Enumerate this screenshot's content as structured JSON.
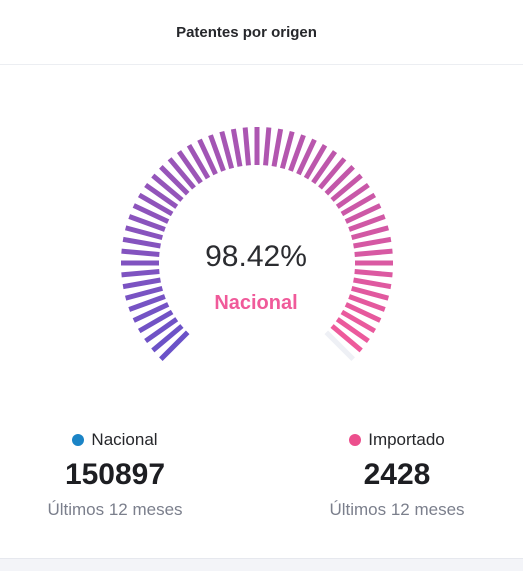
{
  "header": {
    "title": "Patentes por origen"
  },
  "gauge": {
    "value_text": "98.42%",
    "fraction": 0.9842,
    "label": "Nacional",
    "label_color": "#f05a9a",
    "gradient_start": "#6a52c8",
    "gradient_end": "#f05a9a",
    "track_color": "#eef0f5"
  },
  "legend": [
    {
      "name": "Nacional",
      "dot_color": "#1b84c6",
      "value": "150897",
      "period": "Últimos 12 meses"
    },
    {
      "name": "Importado",
      "dot_color": "#ec4f8d",
      "value": "2428",
      "period": "Últimos 12 meses"
    }
  ]
}
